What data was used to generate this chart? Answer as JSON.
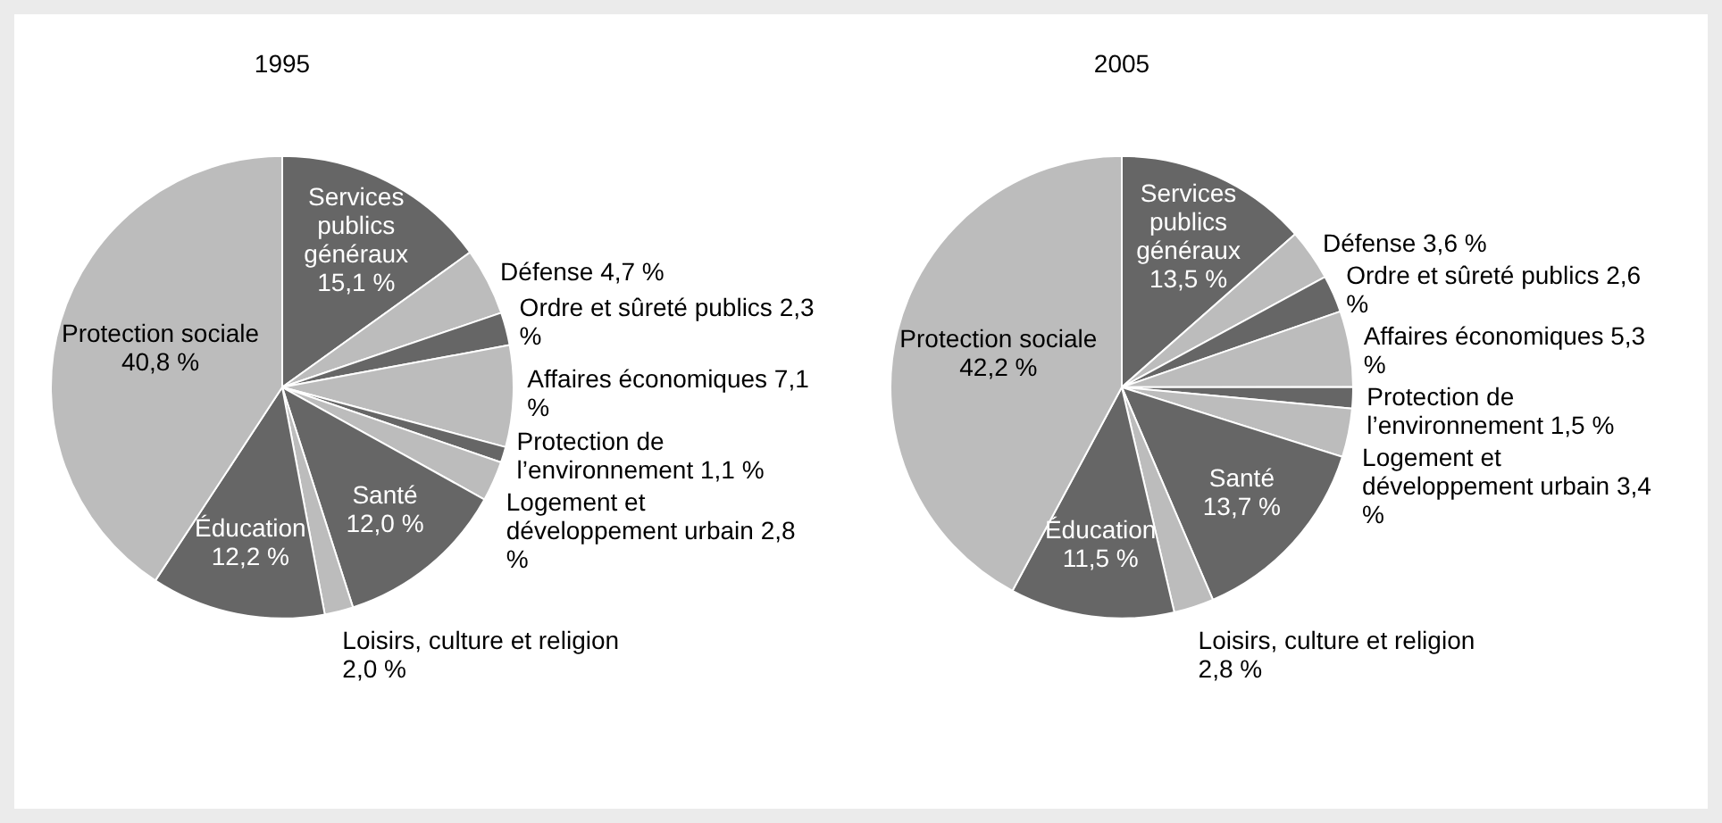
{
  "chart_data": [
    {
      "type": "pie",
      "title": "1995",
      "categories": [
        "Services publics généraux",
        "Défense",
        "Ordre et sûreté publics",
        "Affaires économiques",
        "Protection de l’environnement",
        "Logement et développement urbain",
        "Santé",
        "Loisirs, culture et religion",
        "Éducation",
        "Protection sociale"
      ],
      "values": [
        15.1,
        4.7,
        2.3,
        7.1,
        1.1,
        2.8,
        12.0,
        2.0,
        12.2,
        40.8
      ],
      "value_labels": [
        "15,1 %",
        "4,7 %",
        "2,3 %",
        "7,1 %",
        "1,1 %",
        "2,8 %",
        "12,0 %",
        "2,0 %",
        "12,2 %",
        "40,8 %"
      ],
      "colors": [
        "#666666",
        "#bcbcbc",
        "#666666",
        "#bcbcbc",
        "#666666",
        "#bcbcbc",
        "#666666",
        "#bcbcbc",
        "#666666",
        "#bcbcbc"
      ]
    },
    {
      "type": "pie",
      "title": "2005",
      "categories": [
        "Services publics généraux",
        "Défense",
        "Ordre et sûreté publics",
        "Affaires économiques",
        "Protection de l’environnement",
        "Logement et développement urbain",
        "Santé",
        "Loisirs, culture et religion",
        "Éducation",
        "Protection sociale"
      ],
      "values": [
        13.5,
        3.6,
        2.6,
        5.3,
        1.5,
        3.4,
        13.7,
        2.8,
        11.5,
        42.2
      ],
      "value_labels": [
        "13,5 %",
        "3,6 %",
        "2,6 %",
        "5,3 %",
        "1,5 %",
        "3,4 %",
        "13,7 %",
        "2,8 %",
        "11,5 %",
        "42,2 %"
      ],
      "colors": [
        "#666666",
        "#bcbcbc",
        "#666666",
        "#bcbcbc",
        "#666666",
        "#bcbcbc",
        "#666666",
        "#bcbcbc",
        "#666666",
        "#bcbcbc"
      ]
    }
  ]
}
